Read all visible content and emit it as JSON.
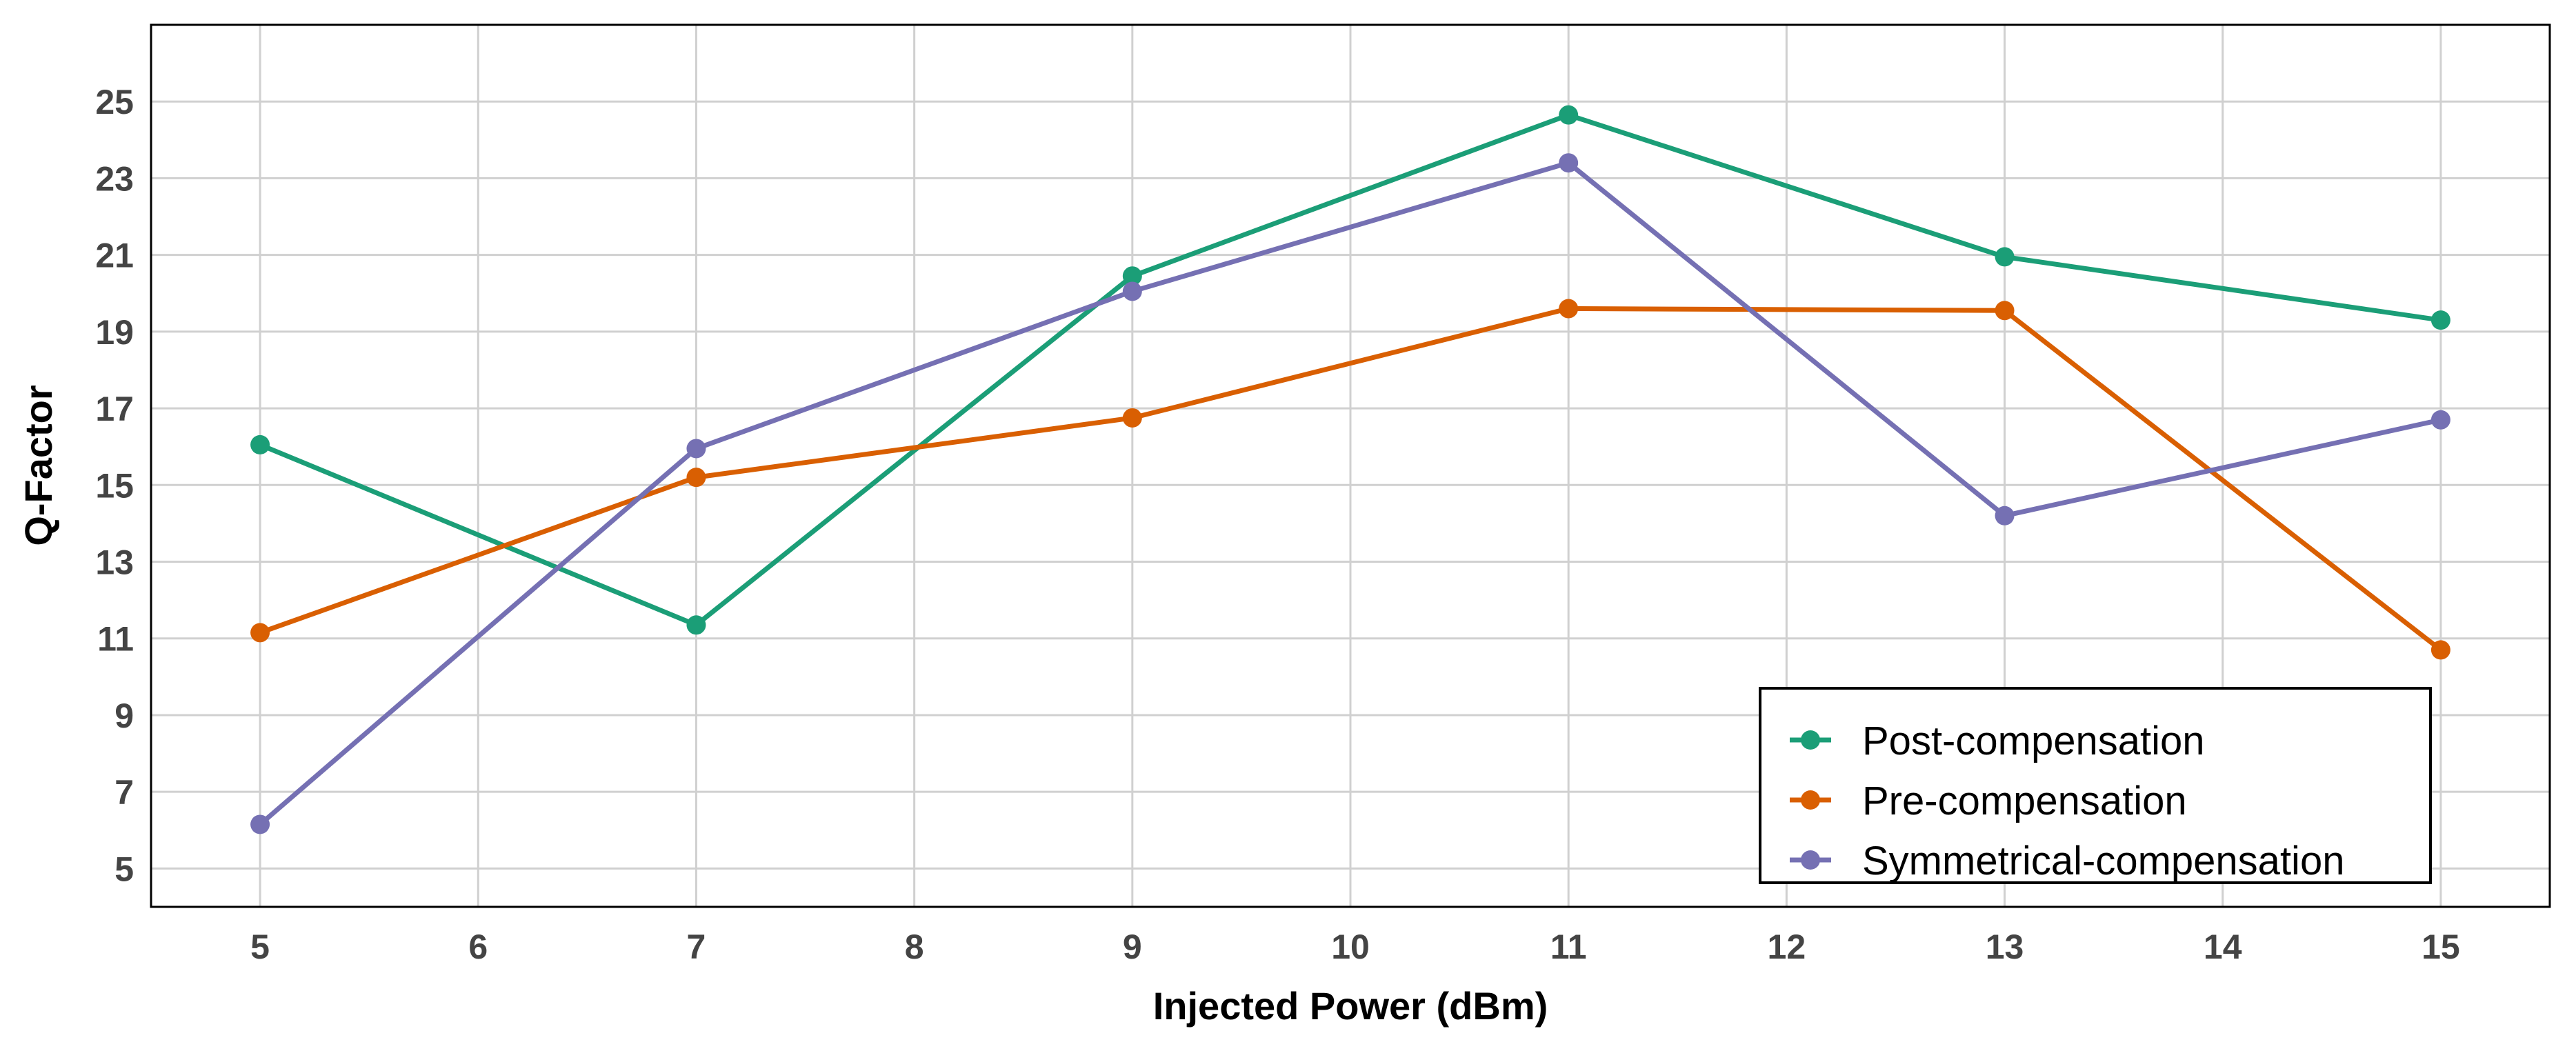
{
  "chart_data": {
    "type": "line",
    "title": "",
    "xlabel": "Injected Power (dBm)",
    "ylabel": "Q-Factor",
    "xlim": [
      4.5,
      15.5
    ],
    "ylim": [
      4,
      27
    ],
    "xticks": [
      5,
      6,
      7,
      8,
      9,
      10,
      11,
      12,
      13,
      14,
      15
    ],
    "yticks": [
      5,
      7,
      9,
      11,
      13,
      15,
      17,
      19,
      21,
      23,
      25
    ],
    "grid": true,
    "legend_position": "bottom-right",
    "x": [
      5,
      7,
      9,
      11,
      13,
      15
    ],
    "series": [
      {
        "name": "Post-compensation",
        "color": "#1b9e77",
        "values": [
          16.05,
          11.35,
          20.45,
          24.65,
          20.95,
          19.3
        ]
      },
      {
        "name": "Pre-compensation",
        "color": "#d95f02",
        "values": [
          11.15,
          15.2,
          16.75,
          19.6,
          19.55,
          10.7
        ]
      },
      {
        "name": "Symmetrical-compensation",
        "color": "#7570b3",
        "values": [
          6.15,
          15.95,
          20.05,
          23.4,
          14.2,
          16.7
        ]
      }
    ]
  }
}
